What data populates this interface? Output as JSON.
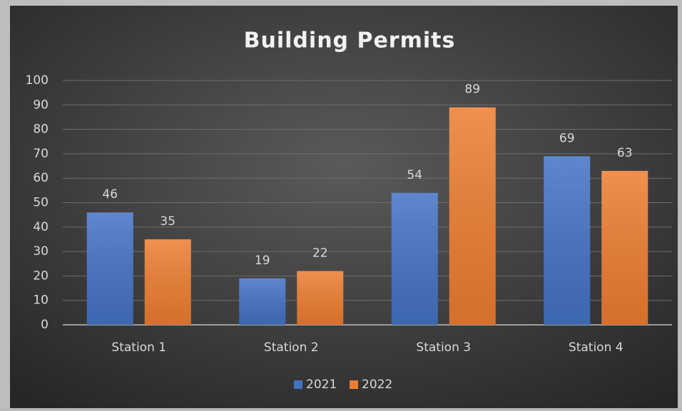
{
  "chart_data": {
    "type": "bar",
    "title": "Building Permits",
    "categories": [
      "Station 1",
      "Station 2",
      "Station 3",
      "Station 4"
    ],
    "series": [
      {
        "name": "2021",
        "color": "#4472c4",
        "values": [
          46,
          19,
          54,
          69
        ]
      },
      {
        "name": "2022",
        "color": "#ed7d31",
        "values": [
          35,
          22,
          89,
          63
        ]
      }
    ],
    "ylim": [
      0,
      100
    ],
    "yticks": [
      0,
      10,
      20,
      30,
      40,
      50,
      60,
      70,
      80,
      90,
      100
    ],
    "grid": true,
    "legend": "bottom"
  }
}
